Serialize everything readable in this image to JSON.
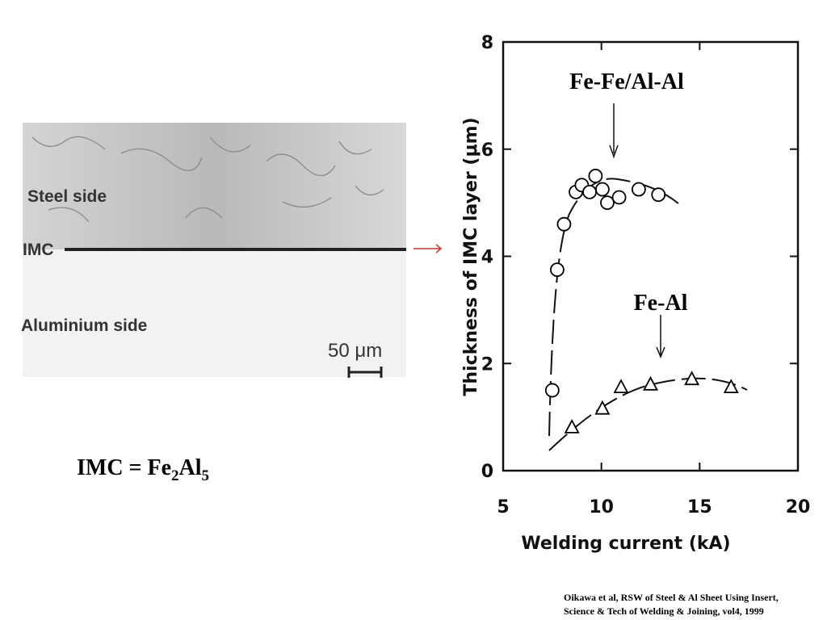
{
  "figure": {
    "micrograph": {
      "steel_label": "Steel side",
      "imc_label": "IMC",
      "aluminium_label": "Aluminium side",
      "scale_label": "50 μm"
    },
    "caption": [
      "IMC = Fe",
      "2",
      "Al",
      "5"
    ],
    "citation": [
      "Oikawa et al, RSW of Steel & Al Sheet Using Insert,",
      "Science & Tech of Welding & Joining, vol4, 1999"
    ]
  },
  "chart_data": {
    "type": "scatter",
    "xlabel": "Welding current  (kA)",
    "ylabel": "Thickness of IMC layer  (μm)",
    "xlim": [
      5,
      20
    ],
    "xticks": [
      5,
      10,
      15,
      20
    ],
    "ylim": [
      0,
      8
    ],
    "yticks": [
      0,
      2,
      4,
      6,
      8
    ],
    "series": [
      {
        "name": "Fe-Fe/Al-Al",
        "color": "#000000",
        "marker": "circle",
        "x": [
          7.5,
          7.75,
          8.1,
          8.7,
          9.0,
          9.4,
          9.7,
          10.05,
          10.3,
          10.9,
          11.9,
          12.9
        ],
        "values": [
          1.5,
          3.75,
          4.6,
          5.2,
          5.33,
          5.2,
          5.5,
          5.25,
          5.0,
          5.1,
          5.25,
          5.15
        ]
      },
      {
        "name": "Fe-Al",
        "color": "#000000",
        "marker": "triangle",
        "x": [
          8.5,
          10.05,
          11.0,
          12.5,
          14.6,
          16.6
        ],
        "values": [
          0.8,
          1.15,
          1.55,
          1.6,
          1.7,
          1.55
        ]
      }
    ]
  }
}
